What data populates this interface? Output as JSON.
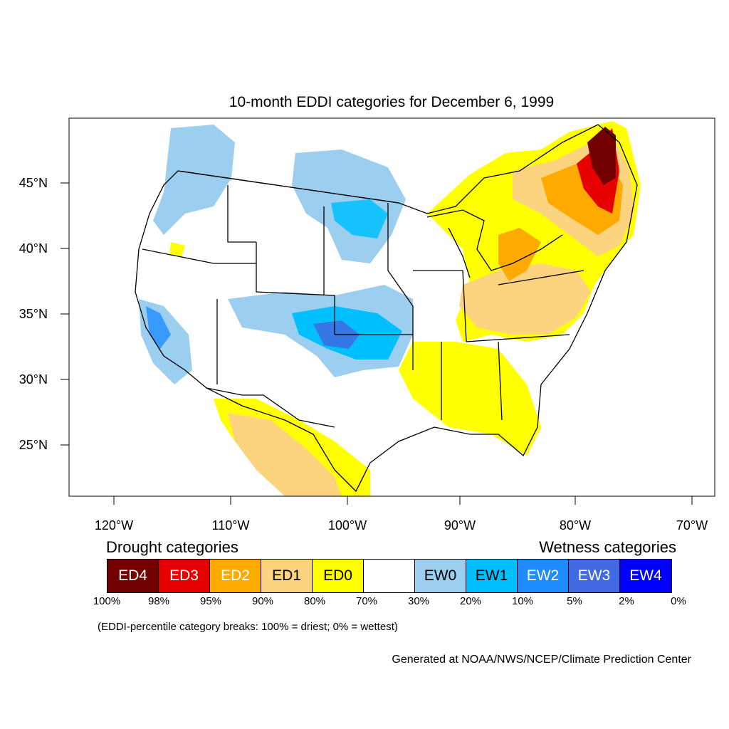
{
  "title": "10-month EDDI categories for December 6, 1999",
  "map": {
    "lon_ticks": [
      "120°W",
      "110°W",
      "100°W",
      "90°W",
      "80°W",
      "70°W"
    ],
    "lat_ticks": [
      "45°N",
      "40°N",
      "35°N",
      "30°N",
      "25°N"
    ],
    "lon_range": [
      -124,
      -68.5
    ],
    "lat_range": [
      21,
      49.5
    ]
  },
  "legend": {
    "drought_heading": "Drought categories",
    "wetness_heading": "Wetness categories",
    "categories": [
      {
        "label": "ED4",
        "color": "#730000",
        "text_color": "#ffffff"
      },
      {
        "label": "ED3",
        "color": "#e60000",
        "text_color": "#ffffff"
      },
      {
        "label": "ED2",
        "color": "#ffaa00",
        "text_color": "#ffffff"
      },
      {
        "label": "ED1",
        "color": "#fcd37f",
        "text_color": "#000000"
      },
      {
        "label": "ED0",
        "color": "#ffff00",
        "text_color": "#000000"
      },
      {
        "label": "",
        "color": "#ffffff",
        "text_color": "#000000"
      },
      {
        "label": "EW0",
        "color": "#9ccfef",
        "text_color": "#000000"
      },
      {
        "label": "EW1",
        "color": "#00bfff",
        "text_color": "#000000"
      },
      {
        "label": "EW2",
        "color": "#1e8cff",
        "text_color": "#ffffff"
      },
      {
        "label": "EW3",
        "color": "#4169e1",
        "text_color": "#ffffff"
      },
      {
        "label": "EW4",
        "color": "#0000ff",
        "text_color": "#ffffff"
      }
    ],
    "breaks": [
      "100%",
      "98%",
      "95%",
      "90%",
      "80%",
      "70%",
      "30%",
      "20%",
      "10%",
      "5%",
      "2%",
      "0%"
    ],
    "note": "(EDDI-percentile category breaks: 100% = driest; 0% = wettest)"
  },
  "credit": "Generated at NOAA/NWS/NCEP/Climate Prediction Center"
}
